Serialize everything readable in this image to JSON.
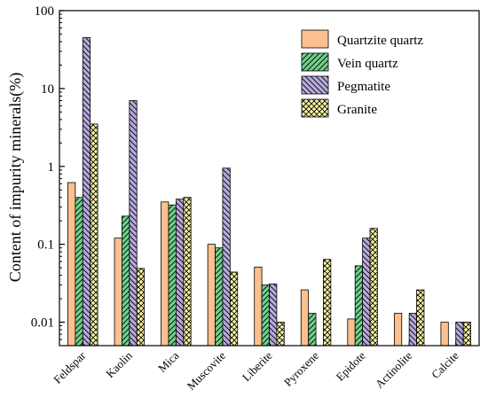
{
  "chart_data": {
    "type": "bar",
    "title": "",
    "xlabel": "",
    "ylabel": "Content of impurity minerals(%)",
    "yscale": "log",
    "ylim": [
      0.005,
      100
    ],
    "yticks": [
      0.01,
      0.1,
      1,
      10,
      100
    ],
    "ytick_labels": [
      "0.01",
      "0.1",
      "1",
      "10",
      "100"
    ],
    "grid": false,
    "legend": "top-right",
    "categories": [
      "Feldspar",
      "Kaolin",
      "Mica",
      "Muscovite",
      "Liberite",
      "Pyroxene",
      "Epidote",
      "Actinolite",
      "Calcite"
    ],
    "series": [
      {
        "name": "Quartzite quartz",
        "color": "#fbc08f",
        "pattern": "solid",
        "values": [
          0.62,
          0.12,
          0.35,
          0.1,
          0.051,
          0.026,
          0.011,
          0.013,
          0.01
        ]
      },
      {
        "name": "Vein quartz",
        "color": "#6fd08a",
        "pattern": "diagonal-right",
        "values": [
          0.4,
          0.23,
          0.32,
          0.09,
          0.03,
          0.013,
          0.053,
          null,
          null
        ]
      },
      {
        "name": "Pegmatite",
        "color": "#b8a9dd",
        "pattern": "diagonal-left",
        "values": [
          45,
          7,
          0.38,
          0.95,
          0.031,
          null,
          0.12,
          0.013,
          0.01
        ]
      },
      {
        "name": "Granite",
        "color": "#f4f2a2",
        "pattern": "crosshatch",
        "values": [
          3.5,
          0.049,
          0.4,
          0.044,
          0.01,
          0.064,
          0.16,
          0.026,
          0.01
        ]
      }
    ]
  }
}
